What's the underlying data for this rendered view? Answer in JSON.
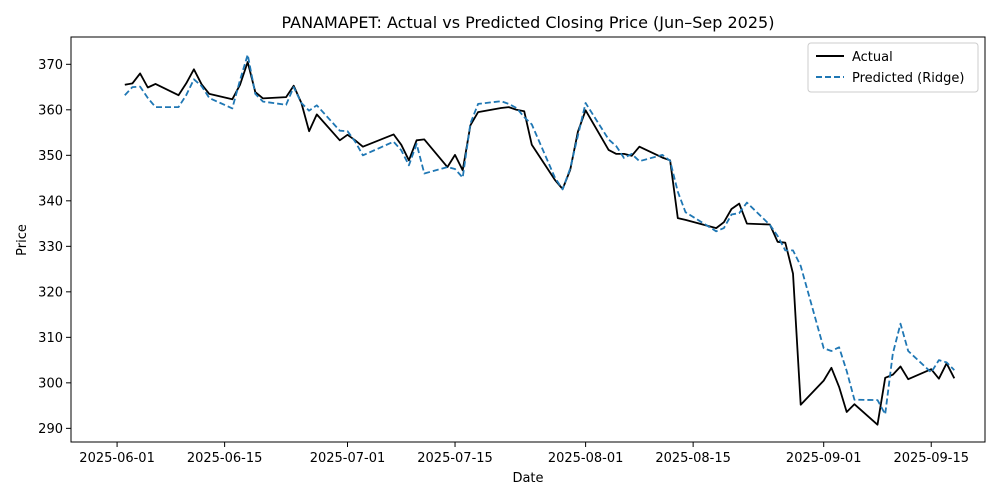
{
  "chart_data": {
    "type": "line",
    "title": "PANAMAPET: Actual vs Predicted Closing Price (Jun–Sep 2025)",
    "xlabel": "Date",
    "ylabel": "Price",
    "xlim": [
      "2025-05-26",
      "2025-09-22"
    ],
    "ylim": [
      287,
      376
    ],
    "x_ticks": [
      "2025-06-01",
      "2025-06-15",
      "2025-07-01",
      "2025-07-15",
      "2025-08-01",
      "2025-08-15",
      "2025-09-01",
      "2025-09-15"
    ],
    "y_ticks": [
      290,
      300,
      310,
      320,
      330,
      340,
      350,
      360,
      370
    ],
    "legend_position": "top-right",
    "grid": false,
    "series": [
      {
        "name": "Actual",
        "color": "#000000",
        "style": "solid",
        "x": [
          "2025-06-02",
          "2025-06-03",
          "2025-06-04",
          "2025-06-05",
          "2025-06-06",
          "2025-06-09",
          "2025-06-10",
          "2025-06-11",
          "2025-06-12",
          "2025-06-13",
          "2025-06-16",
          "2025-06-17",
          "2025-06-18",
          "2025-06-19",
          "2025-06-20",
          "2025-06-23",
          "2025-06-24",
          "2025-06-25",
          "2025-06-26",
          "2025-06-27",
          "2025-06-30",
          "2025-07-01",
          "2025-07-02",
          "2025-07-03",
          "2025-07-07",
          "2025-07-08",
          "2025-07-09",
          "2025-07-10",
          "2025-07-11",
          "2025-07-14",
          "2025-07-15",
          "2025-07-16",
          "2025-07-17",
          "2025-07-18",
          "2025-07-21",
          "2025-07-22",
          "2025-07-23",
          "2025-07-24",
          "2025-07-25",
          "2025-07-28",
          "2025-07-29",
          "2025-07-30",
          "2025-07-31",
          "2025-08-01",
          "2025-08-04",
          "2025-08-05",
          "2025-08-06",
          "2025-08-07",
          "2025-08-08",
          "2025-08-11",
          "2025-08-12",
          "2025-08-13",
          "2025-08-14",
          "2025-08-18",
          "2025-08-19",
          "2025-08-20",
          "2025-08-21",
          "2025-08-22",
          "2025-08-25",
          "2025-08-26",
          "2025-08-27",
          "2025-08-28",
          "2025-08-29",
          "2025-09-01",
          "2025-09-02",
          "2025-09-03",
          "2025-09-04",
          "2025-09-05",
          "2025-09-08",
          "2025-09-09",
          "2025-09-10",
          "2025-09-11",
          "2025-09-12",
          "2025-09-15",
          "2025-09-16",
          "2025-09-17",
          "2025-09-18"
        ],
        "values": [
          365.5,
          365.8,
          368.0,
          364.9,
          365.7,
          363.2,
          365.8,
          368.9,
          365.6,
          363.5,
          362.3,
          365.5,
          370.5,
          363.9,
          362.5,
          362.8,
          365.3,
          361.5,
          355.3,
          359.0,
          353.3,
          354.5,
          353.3,
          351.9,
          354.6,
          352.3,
          348.9,
          353.3,
          353.5,
          347.4,
          350.1,
          346.7,
          356.6,
          359.5,
          360.4,
          360.6,
          360.0,
          359.7,
          352.3,
          344.6,
          342.6,
          346.8,
          355.2,
          359.9,
          351.2,
          350.3,
          350.3,
          349.9,
          351.9,
          349.5,
          348.9,
          336.2,
          335.8,
          334.0,
          335.3,
          338.2,
          339.4,
          335.0,
          334.8,
          331.0,
          330.8,
          324.0,
          295.2,
          300.5,
          303.3,
          299.1,
          293.6,
          295.3,
          290.8,
          301.1,
          301.8,
          303.6,
          300.8,
          303.0,
          300.9,
          304.3,
          301.0
        ]
      },
      {
        "name": "Predicted (Ridge)",
        "color": "#1f77b4",
        "style": "dashed",
        "x": [
          "2025-06-02",
          "2025-06-03",
          "2025-06-04",
          "2025-06-05",
          "2025-06-06",
          "2025-06-09",
          "2025-06-10",
          "2025-06-11",
          "2025-06-12",
          "2025-06-13",
          "2025-06-16",
          "2025-06-17",
          "2025-06-18",
          "2025-06-19",
          "2025-06-20",
          "2025-06-23",
          "2025-06-24",
          "2025-06-25",
          "2025-06-26",
          "2025-06-27",
          "2025-06-30",
          "2025-07-01",
          "2025-07-02",
          "2025-07-03",
          "2025-07-07",
          "2025-07-08",
          "2025-07-09",
          "2025-07-10",
          "2025-07-11",
          "2025-07-14",
          "2025-07-15",
          "2025-07-16",
          "2025-07-17",
          "2025-07-18",
          "2025-07-21",
          "2025-07-22",
          "2025-07-23",
          "2025-07-24",
          "2025-07-25",
          "2025-07-28",
          "2025-07-29",
          "2025-07-30",
          "2025-07-31",
          "2025-08-01",
          "2025-08-04",
          "2025-08-05",
          "2025-08-06",
          "2025-08-07",
          "2025-08-08",
          "2025-08-11",
          "2025-08-12",
          "2025-08-13",
          "2025-08-14",
          "2025-08-18",
          "2025-08-19",
          "2025-08-20",
          "2025-08-21",
          "2025-08-22",
          "2025-08-25",
          "2025-08-26",
          "2025-08-27",
          "2025-08-28",
          "2025-08-29",
          "2025-09-01",
          "2025-09-02",
          "2025-09-03",
          "2025-09-04",
          "2025-09-05",
          "2025-09-08",
          "2025-09-09",
          "2025-09-10",
          "2025-09-11",
          "2025-09-12",
          "2025-09-15",
          "2025-09-16",
          "2025-09-17",
          "2025-09-18"
        ],
        "values": [
          363.2,
          365.0,
          365.1,
          362.6,
          360.6,
          360.6,
          363.2,
          366.7,
          365.2,
          362.6,
          360.3,
          366.5,
          372.1,
          363.5,
          361.8,
          361.1,
          365.0,
          361.5,
          359.8,
          361.0,
          355.4,
          355.3,
          353.0,
          350.0,
          353.0,
          351.1,
          347.8,
          352.5,
          346.0,
          347.4,
          347.0,
          345.1,
          357.0,
          361.3,
          361.9,
          361.3,
          360.4,
          358.4,
          356.8,
          345.1,
          342.5,
          347.1,
          354.3,
          361.5,
          353.5,
          352.0,
          349.4,
          350.3,
          348.7,
          350.1,
          348.8,
          342.0,
          337.5,
          333.3,
          334.0,
          337.0,
          337.3,
          339.6,
          334.7,
          332.3,
          329.1,
          329.1,
          325.7,
          307.6,
          307.0,
          307.8,
          302.6,
          296.3,
          296.2,
          293.1,
          306.4,
          313.0,
          307.0,
          302.3,
          305.0,
          304.5,
          302.8
        ]
      }
    ]
  }
}
